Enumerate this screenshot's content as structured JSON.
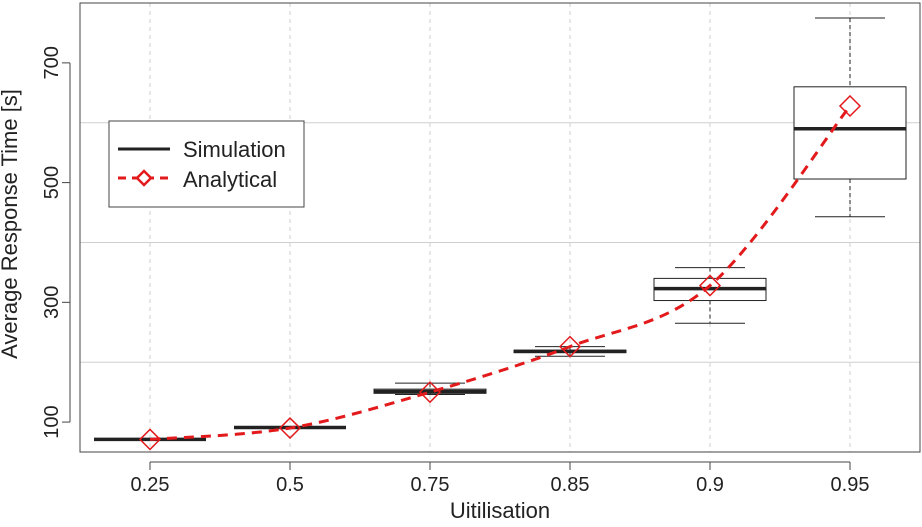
{
  "chart_data": {
    "type": "boxplot",
    "xlabel": "Uitilisation",
    "ylabel": "Average Response Time [s]",
    "categories": [
      "0.25",
      "0.5",
      "0.75",
      "0.85",
      "0.9",
      "0.95"
    ],
    "y_ticks": [
      100,
      300,
      500,
      700
    ],
    "y_ticks_labels": [
      "100",
      "300",
      "500",
      "700"
    ],
    "ylim": [
      50,
      800
    ],
    "y_grid": [
      200,
      400,
      600
    ],
    "grid": true,
    "legend": {
      "position": "top-left",
      "entries": [
        {
          "label": "Simulation",
          "style": "solid-black-line"
        },
        {
          "label": "Analytical",
          "style": "red-dashed-diamond"
        }
      ]
    },
    "series": [
      {
        "name": "Simulation",
        "kind": "boxplot",
        "color": "#222222",
        "boxes": [
          {
            "category": "0.25",
            "min": 71,
            "q1": 71,
            "median": 71,
            "q3": 71,
            "max": 71
          },
          {
            "category": "0.5",
            "min": 91,
            "q1": 91,
            "median": 91,
            "q3": 91,
            "max": 91
          },
          {
            "category": "0.75",
            "min": 146,
            "q1": 148,
            "median": 151,
            "q3": 155,
            "max": 165
          },
          {
            "category": "0.85",
            "min": 210,
            "q1": 216,
            "median": 218,
            "q3": 220,
            "max": 226
          },
          {
            "category": "0.9",
            "min": 265,
            "q1": 303,
            "median": 323,
            "q3": 340,
            "max": 358
          },
          {
            "category": "0.95",
            "min": 443,
            "q1": 506,
            "median": 590,
            "q3": 660,
            "max": 775
          }
        ]
      },
      {
        "name": "Analytical",
        "kind": "line",
        "color": "#e31a1c",
        "marker": "diamond",
        "values": [
          71,
          90,
          150,
          226,
          328,
          628
        ]
      }
    ]
  }
}
